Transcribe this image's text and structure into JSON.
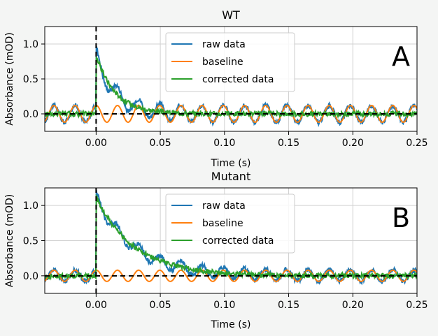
{
  "chart_data": [
    {
      "type": "line",
      "title": "WT",
      "panel_label": "A",
      "xlabel": "Time (s)",
      "ylabel": "Absorbance (mOD)",
      "xlim": [
        -0.04,
        0.25
      ],
      "ylim": [
        -0.25,
        1.25
      ],
      "xticks": [
        "0.00",
        "0.05",
        "0.10",
        "0.15",
        "0.20",
        "0.25"
      ],
      "xtick_values": [
        0.0,
        0.05,
        0.1,
        0.15,
        0.2,
        0.25
      ],
      "yticks": [
        "0.0",
        "0.5",
        "1.0"
      ],
      "ytick_values": [
        0.0,
        0.5,
        1.0
      ],
      "grid": true,
      "legend_position": "top-center",
      "vline_x": 0.0,
      "hline_y": 0.0,
      "series": [
        {
          "name": "raw data",
          "color": "#1f77b4",
          "kind": "raw",
          "signal": {
            "amplitude": 0.84,
            "tau": 0.015
          },
          "oscillation": {
            "amplitude": 0.12,
            "period": 0.0165
          }
        },
        {
          "name": "baseline",
          "color": "#ff7f0e",
          "kind": "baseline",
          "oscillation": {
            "amplitude": 0.12,
            "period": 0.0165
          }
        },
        {
          "name": "corrected data",
          "color": "#2ca02c",
          "kind": "corrected",
          "signal": {
            "amplitude": 0.84,
            "tau": 0.015
          }
        }
      ]
    },
    {
      "type": "line",
      "title": "Mutant",
      "panel_label": "B",
      "xlabel": "Time (s)",
      "ylabel": "Absorbance (mOD)",
      "xlim": [
        -0.04,
        0.25
      ],
      "ylim": [
        -0.25,
        1.25
      ],
      "xticks": [
        "0.00",
        "0.05",
        "0.10",
        "0.15",
        "0.20",
        "0.25"
      ],
      "xtick_values": [
        0.0,
        0.05,
        0.1,
        0.15,
        0.2,
        0.25
      ],
      "yticks": [
        "0.0",
        "0.5",
        "1.0"
      ],
      "ytick_values": [
        0.0,
        0.5,
        1.0
      ],
      "grid": true,
      "legend_position": "top-center",
      "vline_x": 0.0,
      "hline_y": 0.0,
      "series": [
        {
          "name": "raw data",
          "color": "#1f77b4",
          "kind": "raw",
          "signal": {
            "amplitude": 1.12,
            "tau": 0.03
          },
          "oscillation": {
            "amplitude": 0.08,
            "period": 0.0165
          }
        },
        {
          "name": "baseline",
          "color": "#ff7f0e",
          "kind": "baseline",
          "oscillation": {
            "amplitude": 0.08,
            "period": 0.0165
          }
        },
        {
          "name": "corrected data",
          "color": "#2ca02c",
          "kind": "corrected",
          "signal": {
            "amplitude": 1.12,
            "tau": 0.03
          }
        }
      ]
    }
  ]
}
